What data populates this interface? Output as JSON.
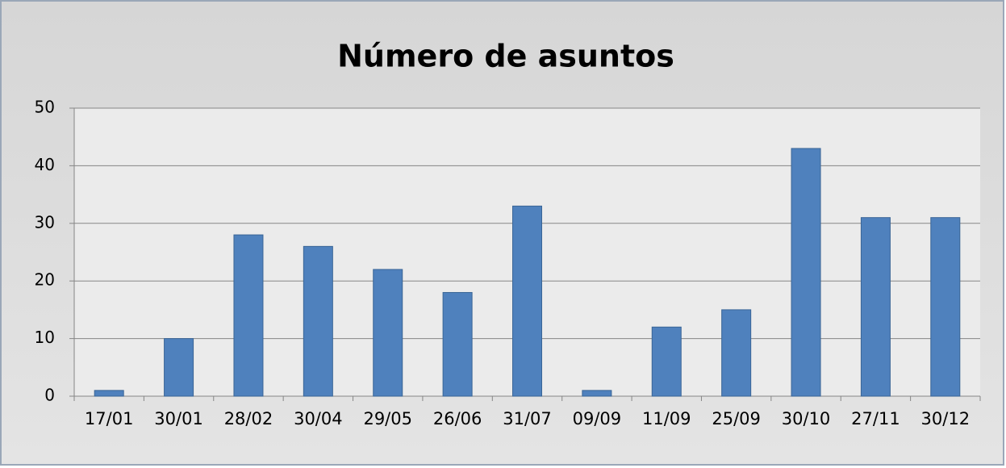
{
  "chart_data": {
    "type": "bar",
    "title": "Número de asuntos",
    "categories": [
      "17/01",
      "30/01",
      "28/02",
      "30/04",
      "29/05",
      "26/06",
      "31/07",
      "09/09",
      "11/09",
      "25/09",
      "30/10",
      "27/11",
      "30/12"
    ],
    "values": [
      1,
      10,
      28,
      26,
      22,
      18,
      33,
      1,
      12,
      15,
      43,
      31,
      31
    ],
    "color": "#4f81bd",
    "ylim": [
      0,
      50
    ],
    "yticks": [
      0,
      10,
      20,
      30,
      40,
      50
    ],
    "grid": true
  }
}
